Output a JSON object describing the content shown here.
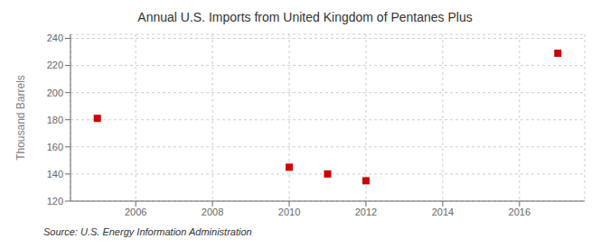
{
  "chart_data": {
    "type": "scatter",
    "title": "Annual U.S. Imports from United Kingdom of Pentanes Plus",
    "ylabel": "Thousand Barrels",
    "annotation": "Source: U.S. Energy Information Administration",
    "x": [
      2005,
      2010,
      2011,
      2012,
      2017
    ],
    "values": [
      181,
      145,
      140,
      135,
      229
    ],
    "xlim": [
      2004.3,
      2017.7
    ],
    "ylim": [
      120,
      243
    ],
    "xticks": [
      2006,
      2008,
      2010,
      2012,
      2014,
      2016
    ],
    "yticks": [
      120,
      140,
      160,
      180,
      200,
      220,
      240
    ],
    "color": "#cc0000",
    "marker": "square",
    "grid": true
  }
}
